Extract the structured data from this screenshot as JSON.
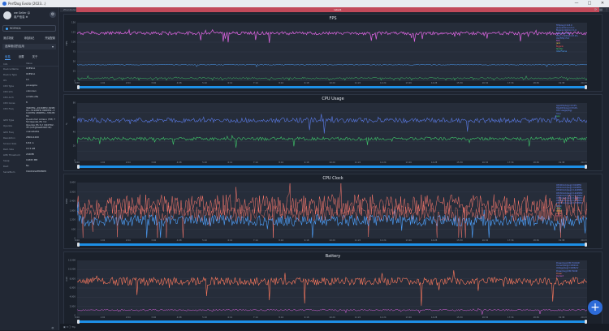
{
  "window": {
    "title": "PerfDog Evolo  (2023...)",
    "controls": [
      "—",
      "□",
      "✕"
    ]
  },
  "user": {
    "name": "we Seller ☺",
    "sub": "用户信息 ⊕"
  },
  "device": {
    "label": "9CE9CA",
    "actions": [
      "测试场景",
      "添加标记",
      "开始配置"
    ]
  },
  "app": {
    "label": "选择测试的应用"
  },
  "tabs": [
    "信息",
    "设置",
    "关于"
  ],
  "info": {
    "header": [
      "Info",
      "Value"
    ],
    "rows": [
      [
        "Device Name",
        "9CE9CA"
      ],
      [
        "Device Type",
        "9CE9CA"
      ],
      [
        "OS",
        "13"
      ],
      [
        "CPU Type",
        "pineapple"
      ],
      [
        "CPU Info",
        "unknown"
      ],
      [
        "CPU Arch",
        "arm64-v8a"
      ],
      [
        "CPU Cores",
        "8"
      ],
      [
        "CPU Freq",
        "364MHz~2016MHz 499MHz~3110MHz 499MHz~3110MHz 480MHz~3302MHz"
      ],
      [
        "GPU Type",
        "Qualcomm Adreno (TM) 750 OpenGL ES 3.2"
      ],
      [
        "OpenGL",
        "OpenGL ES 3.2 V@0762.35 (GIT@6ae8d9ecd2)"
      ],
      [
        "GPU Freq",
        "unavailable"
      ],
      [
        "Resolution",
        "2800x1260"
      ],
      [
        "Screen Size",
        "6.82 in"
      ],
      [
        "Ram Size",
        "15.5 GB"
      ],
      [
        "LMK Threshold",
        "216MB"
      ],
      [
        "Swap",
        "16383 MB"
      ],
      [
        "Root",
        "No"
      ],
      [
        "SerialNum",
        "9nb6d2e4f8080f0"
      ]
    ]
  },
  "main": {
    "app_name": "ZhanQuGo",
    "marker": "label1",
    "x_ticks": [
      "0:00",
      "1:02",
      "2:04",
      "3:06",
      "4:08",
      "5:10",
      "6:12",
      "7:14",
      "8:16",
      "9:18",
      "10:20",
      "11:22",
      "12:24",
      "13:26",
      "14:28",
      "15:30",
      "16:32",
      "17:34",
      "18:36",
      "19:38"
    ],
    "end_time": "20:23",
    "status": "▣ 3   ⓘ Tip"
  },
  "panels": [
    {
      "title": "FPS",
      "ylabel": "FPS",
      "y_ticks": [
        "150",
        "125",
        "100",
        "75",
        "50",
        "25",
        "0"
      ],
      "legend": [
        {
          "text": "FPS(Avg)=118.0",
          "color": "#6c8cff"
        },
        {
          "text": "Jank(/10min)=21.1",
          "color": "#6c8cff"
        },
        {
          "text": "BigJank(/10min)=1.6",
          "color": "#6c8cff"
        },
        {
          "text": "Stutter=0.06%",
          "color": "#6c8cff"
        },
        {
          "text": "FPS>=118(%)=97.4%",
          "color": "#6c8cff"
        },
        {
          "text": "Var(FPS)=5.6",
          "color": "#6c8cff"
        },
        {
          "text": "FPS",
          "color": "#e266e6"
        },
        {
          "text": "Jank",
          "color": "#f0c040"
        },
        {
          "text": "BigJank",
          "color": "#ff5050"
        },
        {
          "text": "Stutter",
          "color": "#3ec86a"
        },
        {
          "text": "InterFrame",
          "color": "#4fa3ff"
        }
      ]
    },
    {
      "title": "CPU Usage",
      "ylabel": "%",
      "y_ticks": [
        "80",
        "60",
        "40",
        "20",
        "0"
      ],
      "legend": [
        {
          "text": "AppCPU(Avg)=13.0%",
          "color": "#6c8cff"
        },
        {
          "text": "TotalCPU(Avg)=33.6%",
          "color": "#6c8cff"
        },
        {
          "text": "CPU Usage(Avg)",
          "color": "#6c8cff"
        },
        {
          "text": "Total",
          "color": "#5a7be8"
        },
        {
          "text": "App",
          "color": "#3ec86a"
        }
      ]
    },
    {
      "title": "CPU Clock",
      "ylabel": "MHz",
      "y_ticks": [
        "3,600",
        "3,000",
        "2,400",
        "1,800",
        "1,200",
        "600",
        "0"
      ],
      "legend": [
        {
          "text": "CPU0Clock(Avg)=919MHz",
          "color": "#6c8cff"
        },
        {
          "text": "CPU1Clock(Avg)=919MHz",
          "color": "#6c8cff"
        },
        {
          "text": "CPU2Clock(Avg)=1422MHz",
          "color": "#6c8cff"
        },
        {
          "text": "CPU3Clock(Avg)=1422MHz",
          "color": "#6c8cff"
        },
        {
          "text": "CPU4Clock(Avg)=1411MHz",
          "color": "#6c8cff"
        },
        {
          "text": "CPU5Clock(Avg)=1409MHz",
          "color": "#6c8cff"
        },
        {
          "text": "CPU6Clock(Avg)=1410MHz",
          "color": "#6c8cff"
        },
        {
          "text": "CPU7Clock(Avg)=1730MHz",
          "color": "#6c8cff"
        },
        {
          "text": "CPU0",
          "color": "#4fa3ff"
        },
        {
          "text": "CPU2",
          "color": "#3ec86a"
        },
        {
          "text": "CPU4",
          "color": "#f0c040"
        },
        {
          "text": "CPU6",
          "color": "#ff8a65"
        },
        {
          "text": "CPU7",
          "color": "#ff5e7a"
        }
      ]
    },
    {
      "title": "Battery",
      "ylabel": "mW",
      "y_ticks": [
        "12,000",
        "10,000",
        "8,000",
        "6,000",
        "4,000",
        "2,000",
        "0"
      ],
      "legend": [
        {
          "text": "Power(Avg)=8173.6mW",
          "color": "#6c8cff"
        },
        {
          "text": "Current(Avg)=1952mA",
          "color": "#6c8cff"
        },
        {
          "text": "Voltage(Avg)=4186mV",
          "color": "#6c8cff"
        },
        {
          "text": "Power(Avg)=8173mW",
          "color": "#6c8cff"
        },
        {
          "text": "Power",
          "color": "#ff7a5e"
        },
        {
          "text": "Current",
          "color": "#e266e6"
        }
      ]
    }
  ],
  "colors": {
    "fps": "#e266e6",
    "jank": "#f0c040",
    "stutter": "#3ec86a",
    "interframe": "#4fa3ff",
    "cpu_total": "#5a7be8",
    "cpu_app": "#3ec86a",
    "clk_big": "#ff7a6e",
    "clk_little": "#4fa3ff",
    "power": "#ff7a5e",
    "current": "#e266e6"
  }
}
